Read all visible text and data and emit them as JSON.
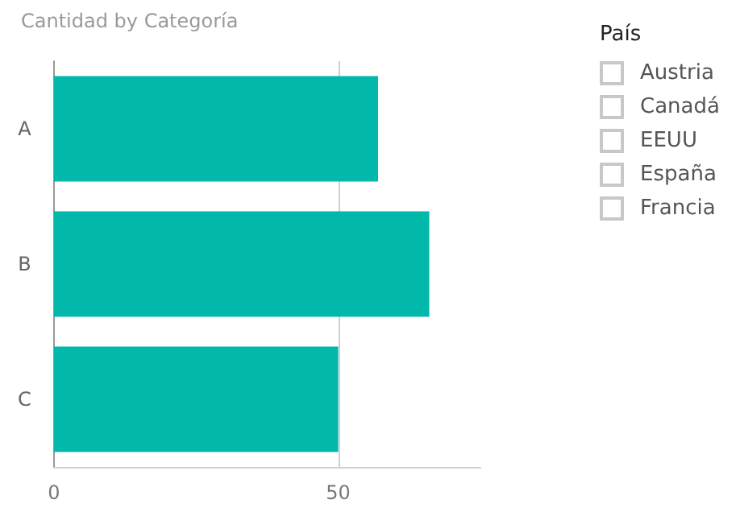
{
  "chart_data": [
    {
      "type": "bar",
      "title": "Cantidad by Categoría",
      "orientation": "horizontal",
      "categories": [
        "A",
        "B",
        "C"
      ],
      "values": [
        57,
        66,
        50
      ],
      "color": "#01b8aa",
      "xlim": [
        0,
        75
      ],
      "xticks": [
        0,
        50
      ],
      "grid": "x"
    },
    {
      "type": "other",
      "title": "País",
      "annotations": [
        "Austria",
        "Canadá",
        "EEUU",
        "España",
        "Francia"
      ]
    }
  ]
}
